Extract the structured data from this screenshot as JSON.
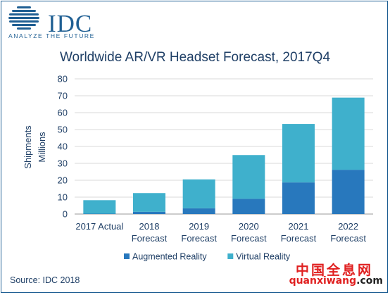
{
  "brand": {
    "name": "IDC",
    "tagline": "ANALYZE THE FUTURE",
    "color": "#1f5f93"
  },
  "source": "Source: IDC 2018",
  "watermark": {
    "chinese": "中国全息网",
    "url_main": "quanxiwang",
    "url_domain": ".com",
    "color": "#e02020"
  },
  "chart_data": {
    "type": "bar",
    "stacked": true,
    "title": "Worldwide AR/VR Headset Forecast, 2017Q4",
    "ylabel_lines": [
      "Shipments",
      "Millions"
    ],
    "xlabel": "",
    "ylim": [
      0,
      80
    ],
    "yticks": [
      0,
      10,
      20,
      30,
      40,
      50,
      60,
      70,
      80
    ],
    "grid": true,
    "legend_position": "bottom",
    "categories": [
      [
        "2017 Actual"
      ],
      [
        "2018",
        "Forecast"
      ],
      [
        "2019",
        "Forecast"
      ],
      [
        "2020",
        "Forecast"
      ],
      [
        "2021",
        "Forecast"
      ],
      [
        "2022",
        "Forecast"
      ]
    ],
    "series": [
      {
        "name": "Augmented Reality",
        "color": "#2878bd",
        "values": [
          0.2,
          1.3,
          3.4,
          9.0,
          18.7,
          26.2
        ]
      },
      {
        "name": "Virtual Reality",
        "color": "#3fb0cc",
        "values": [
          8.0,
          11.1,
          17.1,
          25.9,
          34.6,
          42.7
        ]
      }
    ]
  }
}
